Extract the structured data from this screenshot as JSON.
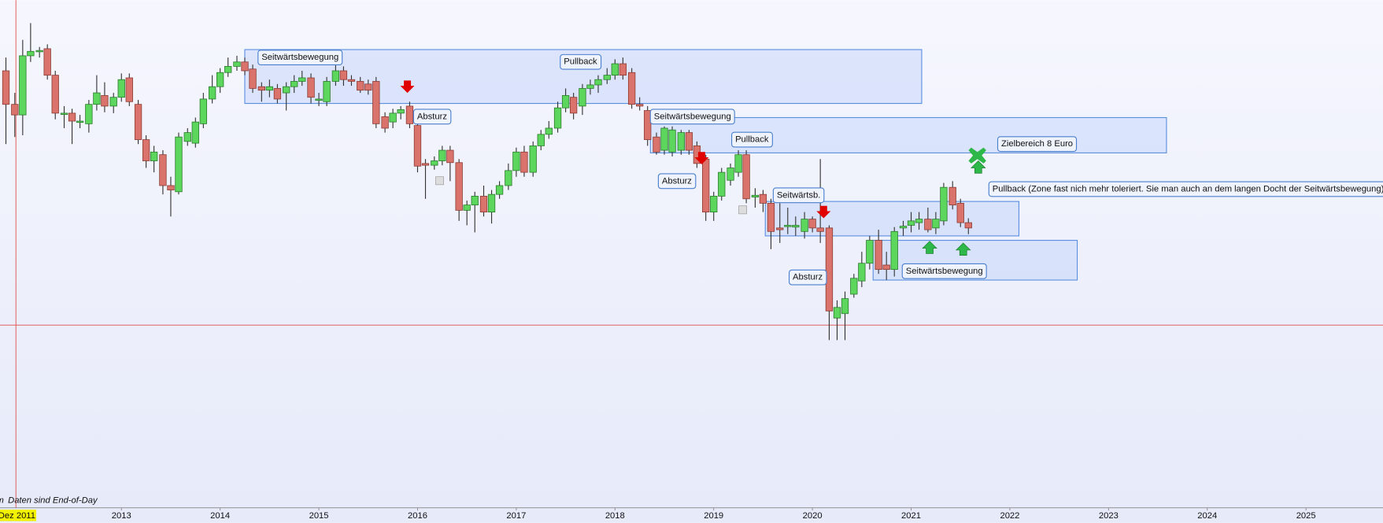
{
  "chart_data": {
    "type": "candlestick",
    "x": [
      2011.83,
      2011.92,
      2012.0,
      2012.08,
      2012.17,
      2012.25,
      2012.33,
      2012.42,
      2012.5,
      2012.58,
      2012.67,
      2012.75,
      2012.83,
      2012.92,
      2013.0,
      2013.08,
      2013.17,
      2013.25,
      2013.33,
      2013.42,
      2013.5,
      2013.58,
      2013.67,
      2013.75,
      2013.83,
      2013.92,
      2014.0,
      2014.08,
      2014.17,
      2014.25,
      2014.33,
      2014.42,
      2014.5,
      2014.58,
      2014.67,
      2014.75,
      2014.83,
      2014.92,
      2015.0,
      2015.08,
      2015.17,
      2015.25,
      2015.33,
      2015.42,
      2015.5,
      2015.58,
      2015.67,
      2015.75,
      2015.83,
      2015.92,
      2016.0,
      2016.08,
      2016.17,
      2016.25,
      2016.33,
      2016.42,
      2016.5,
      2016.58,
      2016.67,
      2016.75,
      2016.83,
      2016.92,
      2017.0,
      2017.08,
      2017.17,
      2017.25,
      2017.33,
      2017.42,
      2017.5,
      2017.58,
      2017.67,
      2017.75,
      2017.83,
      2017.92,
      2018.0,
      2018.08,
      2018.17,
      2018.25,
      2018.33,
      2018.42,
      2018.5,
      2018.58,
      2018.67,
      2018.75,
      2018.83,
      2018.92,
      2019.0,
      2019.08,
      2019.17,
      2019.25,
      2019.33,
      2019.42,
      2019.5,
      2019.58,
      2019.67,
      2019.75,
      2019.83,
      2019.92,
      2020.0,
      2020.08,
      2020.17,
      2020.25,
      2020.33,
      2020.42,
      2020.5,
      2020.58,
      2020.67,
      2020.75,
      2020.83,
      2020.92,
      2021.0,
      2021.08,
      2021.17,
      2021.25,
      2021.33,
      2021.42,
      2021.5,
      2021.58
    ],
    "open": [
      495,
      457,
      445,
      512,
      517,
      520,
      490,
      447,
      447,
      438,
      435,
      457,
      467,
      455,
      465,
      487,
      457,
      417,
      393,
      400,
      365,
      358,
      415,
      413,
      435,
      463,
      477,
      493,
      500,
      505,
      497,
      477,
      473,
      475,
      470,
      477,
      483,
      487,
      463,
      460,
      483,
      495,
      485,
      483,
      480,
      483,
      443,
      437,
      447,
      455,
      433,
      390,
      388,
      393,
      405,
      391,
      337,
      343,
      353,
      335,
      355,
      365,
      382,
      403,
      380,
      410,
      423,
      430,
      453,
      465,
      455,
      475,
      479,
      485,
      490,
      503,
      493,
      457,
      450,
      420,
      405,
      403,
      405,
      425,
      410,
      395,
      335,
      353,
      371,
      380,
      400,
      352,
      355,
      345,
      317,
      320,
      318,
      313,
      327,
      317,
      317,
      215,
      220,
      242,
      257,
      277,
      303,
      275,
      270,
      317,
      320,
      323,
      327,
      317,
      325,
      363,
      345,
      323
    ],
    "high": [
      510,
      470,
      530,
      549,
      522,
      525,
      495,
      455,
      452,
      445,
      462,
      490,
      482,
      470,
      492,
      492,
      462,
      422,
      410,
      405,
      375,
      425,
      430,
      442,
      470,
      490,
      498,
      510,
      512,
      510,
      502,
      482,
      485,
      480,
      482,
      490,
      495,
      492,
      470,
      488,
      502,
      500,
      490,
      488,
      485,
      488,
      448,
      452,
      455,
      460,
      438,
      395,
      398,
      410,
      410,
      395,
      348,
      358,
      365,
      360,
      370,
      390,
      408,
      410,
      415,
      428,
      438,
      460,
      475,
      470,
      480,
      485,
      490,
      498,
      508,
      510,
      498,
      465,
      455,
      425,
      432,
      432,
      428,
      428,
      415,
      400,
      358,
      385,
      390,
      405,
      405,
      362,
      360,
      350,
      345,
      340,
      330,
      335,
      330,
      395,
      320,
      235,
      245,
      265,
      290,
      308,
      315,
      290,
      318,
      325,
      335,
      335,
      340,
      335,
      368,
      370,
      350,
      328
    ],
    "low": [
      412,
      420,
      422,
      505,
      510,
      485,
      440,
      430,
      412,
      430,
      425,
      450,
      448,
      447,
      460,
      455,
      412,
      385,
      380,
      355,
      330,
      355,
      410,
      408,
      430,
      458,
      470,
      488,
      495,
      490,
      470,
      460,
      465,
      458,
      450,
      470,
      478,
      458,
      455,
      455,
      478,
      478,
      478,
      470,
      468,
      430,
      425,
      430,
      440,
      430,
      380,
      350,
      383,
      388,
      370,
      325,
      320,
      312,
      330,
      322,
      350,
      360,
      375,
      375,
      375,
      405,
      418,
      425,
      448,
      440,
      445,
      468,
      470,
      480,
      485,
      485,
      452,
      450,
      410,
      400,
      400,
      398,
      400,
      400,
      385,
      325,
      325,
      348,
      365,
      375,
      345,
      340,
      335,
      293,
      300,
      310,
      308,
      305,
      312,
      300,
      190,
      190,
      190,
      238,
      250,
      270,
      265,
      258,
      262,
      308,
      312,
      315,
      312,
      310,
      320,
      338,
      318,
      310
    ],
    "close": [
      457,
      445,
      512,
      517,
      518,
      490,
      447,
      447,
      438,
      438,
      457,
      470,
      455,
      465,
      485,
      460,
      417,
      393,
      403,
      365,
      360,
      420,
      425,
      437,
      463,
      477,
      493,
      500,
      505,
      495,
      475,
      473,
      477,
      463,
      477,
      483,
      487,
      465,
      463,
      483,
      495,
      485,
      483,
      473,
      473,
      435,
      430,
      447,
      451,
      435,
      387,
      388,
      393,
      405,
      391,
      337,
      343,
      353,
      335,
      355,
      365,
      382,
      403,
      380,
      410,
      423,
      430,
      453,
      467,
      447,
      475,
      479,
      485,
      490,
      503,
      490,
      457,
      455,
      417,
      403,
      430,
      428,
      425,
      405,
      390,
      335,
      353,
      380,
      385,
      400,
      350,
      354,
      345,
      313,
      315,
      320,
      320,
      327,
      317,
      313,
      223,
      227,
      237,
      260,
      277,
      303,
      270,
      270,
      313,
      319,
      325,
      327,
      315,
      327,
      363,
      343,
      323,
      317
    ],
    "up_color": "#5cd65c",
    "down_color": "#d9736b",
    "xlim": [
      2011.77,
      2025.78
    ],
    "xticks": [
      2013,
      2014,
      2015,
      2016,
      2017,
      2018,
      2019,
      2020,
      2021,
      2022,
      2023,
      2024,
      2025
    ],
    "ylim": [
      0,
      575
    ],
    "annotations": [
      "Seitwärtsbewegung",
      "Pullback",
      "Absturz",
      "Seitwärtsbewegung",
      "Pullback",
      "Absturz",
      "Seitwärtsb.",
      "Absturz",
      "Seitwärtsbewegung",
      "Zielbereich 8 Euro",
      "Pullback (Zone fast nich mehr toleriert. Sie man auch an dem langen Docht der Seitwärtsbewegung)"
    ],
    "note": "Daten sind End-of-Day",
    "crosshair_label": "Dez 2011"
  }
}
